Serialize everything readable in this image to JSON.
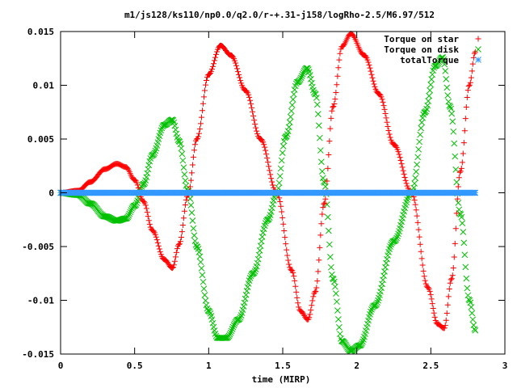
{
  "chart_data": {
    "type": "scatter",
    "title": "m1/js128/ks110/np0.0/q2.0/r-+.31-j158/logRho-2.5/M6.97/512",
    "xlabel": "time (MIRP)",
    "ylabel": "",
    "xlim": [
      0,
      3
    ],
    "ylim": [
      -0.015,
      0.015
    ],
    "x_ticks": [
      0,
      0.5,
      1,
      1.5,
      2,
      2.5,
      3
    ],
    "x_tick_labels": [
      "0",
      "0.5",
      "1",
      "1.5",
      "2",
      "2.5",
      "3"
    ],
    "y_ticks": [
      -0.015,
      -0.01,
      -0.005,
      0,
      0.005,
      0.01,
      0.015
    ],
    "y_tick_labels": [
      "-0.015",
      "-0.01",
      "-0.005",
      "0",
      "0.005",
      "0.01",
      "0.015"
    ],
    "grid": false,
    "legend_position": "top-right",
    "x_max_sample": 2.8,
    "series": [
      {
        "name": "Torque on star",
        "marker": "plus",
        "color": "#ff0000",
        "keypoints": [
          [
            0.0,
            0.0
          ],
          [
            0.12,
            0.0002
          ],
          [
            0.2,
            0.001
          ],
          [
            0.3,
            0.0022
          ],
          [
            0.38,
            0.0027
          ],
          [
            0.44,
            0.0024
          ],
          [
            0.5,
            0.0012
          ],
          [
            0.56,
            -0.0008
          ],
          [
            0.62,
            -0.0035
          ],
          [
            0.7,
            -0.0062
          ],
          [
            0.755,
            -0.007
          ],
          [
            0.8,
            -0.0048
          ],
          [
            0.86,
            -0.0002
          ],
          [
            0.92,
            0.005
          ],
          [
            1.0,
            0.011
          ],
          [
            1.08,
            0.0137
          ],
          [
            1.15,
            0.0128
          ],
          [
            1.25,
            0.0095
          ],
          [
            1.35,
            0.005
          ],
          [
            1.46,
            0.0
          ],
          [
            1.56,
            -0.0072
          ],
          [
            1.62,
            -0.011
          ],
          [
            1.67,
            -0.0118
          ],
          [
            1.72,
            -0.0092
          ],
          [
            1.78,
            -0.001
          ],
          [
            1.84,
            0.008
          ],
          [
            1.9,
            0.0136
          ],
          [
            1.96,
            0.0148
          ],
          [
            2.05,
            0.0128
          ],
          [
            2.15,
            0.0092
          ],
          [
            2.25,
            0.0045
          ],
          [
            2.37,
            0.0
          ],
          [
            2.48,
            -0.0088
          ],
          [
            2.545,
            -0.0122
          ],
          [
            2.59,
            -0.0126
          ],
          [
            2.64,
            -0.008
          ],
          [
            2.7,
            0.002
          ],
          [
            2.76,
            0.01
          ],
          [
            2.8,
            0.0131
          ]
        ]
      },
      {
        "name": "Torque on disk",
        "marker": "cross",
        "color": "#00c000",
        "keypoints": [
          [
            0.0,
            0.0
          ],
          [
            0.12,
            -0.0002
          ],
          [
            0.2,
            -0.001
          ],
          [
            0.3,
            -0.0022
          ],
          [
            0.38,
            -0.0026
          ],
          [
            0.44,
            -0.0024
          ],
          [
            0.5,
            -0.0012
          ],
          [
            0.56,
            0.0008
          ],
          [
            0.62,
            0.0035
          ],
          [
            0.7,
            0.0063
          ],
          [
            0.755,
            0.0068
          ],
          [
            0.8,
            0.0048
          ],
          [
            0.86,
            0.0002
          ],
          [
            0.92,
            -0.005
          ],
          [
            1.0,
            -0.011
          ],
          [
            1.06,
            -0.0135
          ],
          [
            1.12,
            -0.0135
          ],
          [
            1.2,
            -0.0118
          ],
          [
            1.3,
            -0.0075
          ],
          [
            1.4,
            -0.0025
          ],
          [
            1.46,
            0.0
          ],
          [
            1.52,
            0.0052
          ],
          [
            1.6,
            0.0103
          ],
          [
            1.665,
            0.0116
          ],
          [
            1.72,
            0.0092
          ],
          [
            1.78,
            0.001
          ],
          [
            1.84,
            -0.008
          ],
          [
            1.9,
            -0.0138
          ],
          [
            1.96,
            -0.0147
          ],
          [
            2.02,
            -0.0142
          ],
          [
            2.12,
            -0.0105
          ],
          [
            2.25,
            -0.0045
          ],
          [
            2.37,
            0.0
          ],
          [
            2.46,
            0.0075
          ],
          [
            2.53,
            0.0118
          ],
          [
            2.58,
            0.0126
          ],
          [
            2.63,
            0.008
          ],
          [
            2.7,
            -0.002
          ],
          [
            2.76,
            -0.01
          ],
          [
            2.8,
            -0.0128
          ]
        ]
      },
      {
        "name": "totalTorque",
        "marker": "star",
        "color": "#3399ff",
        "keypoints": [
          [
            0.0,
            0.0
          ],
          [
            2.8,
            0.0
          ]
        ]
      }
    ]
  }
}
